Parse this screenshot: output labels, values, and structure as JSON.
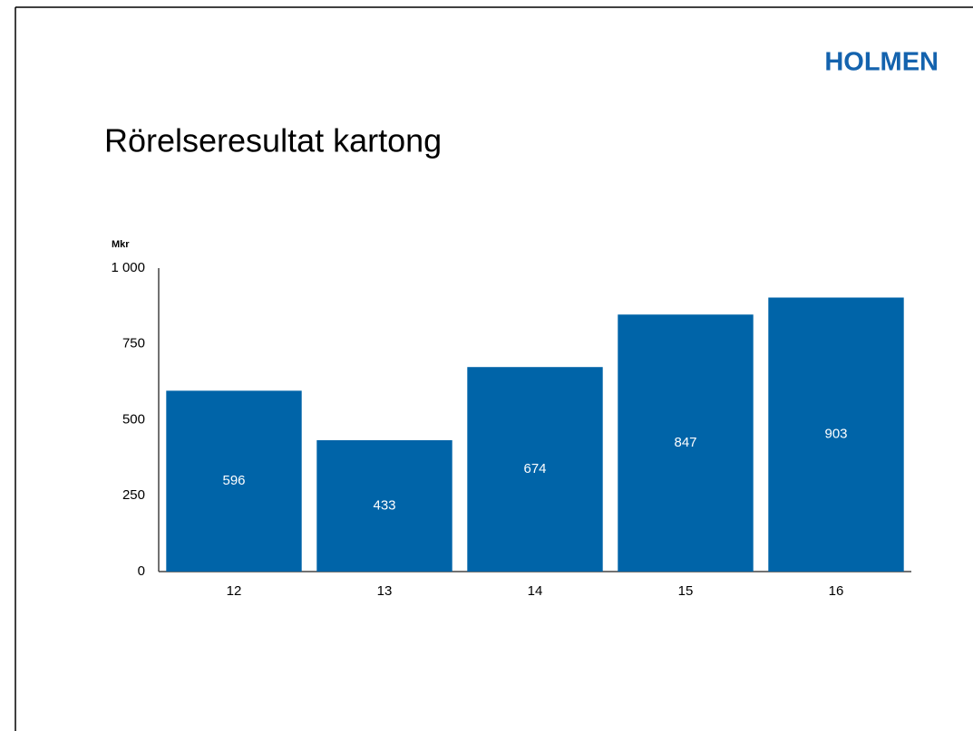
{
  "logo": "HOLMEN",
  "chart_data": {
    "type": "bar",
    "title": "Rörelseresultat kartong",
    "y_label": "Mkr",
    "categories": [
      "12",
      "13",
      "14",
      "15",
      "16"
    ],
    "values": [
      596,
      433,
      674,
      847,
      903
    ],
    "color": "#0064a8",
    "ylim": [
      0,
      1000
    ],
    "yticks": [
      0,
      250,
      500,
      750,
      {
        "value": 1000,
        "label": "1 000"
      }
    ],
    "grid": false
  }
}
